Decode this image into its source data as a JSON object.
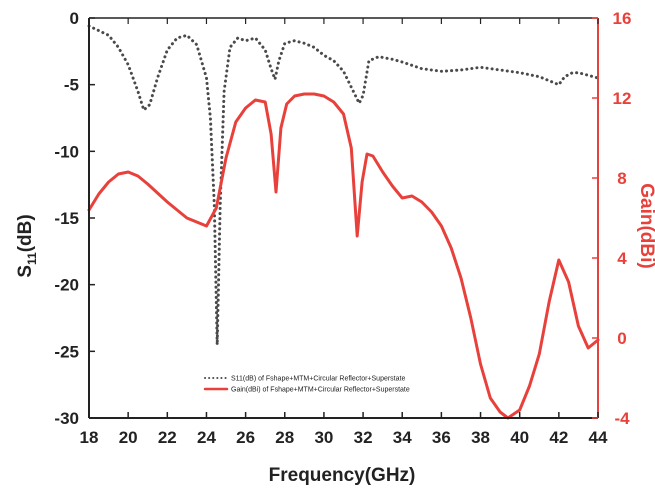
{
  "chart_data": {
    "type": "line",
    "xlabel": "Frequency(GHz)",
    "ylabel_left": {
      "main": "S",
      "sub": "11",
      "rest": "(dB)"
    },
    "ylabel_right": "Gain(dBi)",
    "xlim": [
      18,
      44
    ],
    "ylim_left": [
      -30,
      0
    ],
    "ylim_right": [
      -4,
      16
    ],
    "x_ticks": [
      18,
      20,
      22,
      24,
      26,
      28,
      30,
      32,
      34,
      36,
      38,
      40,
      42,
      44
    ],
    "y_left_ticks": [
      0,
      -5,
      -10,
      -15,
      -20,
      -25,
      -30
    ],
    "y_right_ticks": [
      16,
      12,
      8,
      4,
      0,
      -4
    ],
    "colors": {
      "s11": "#4a4a4a",
      "gain": "#e8413b",
      "right_axis": "#e8413b",
      "left_axis": "#222222"
    },
    "legend_position": "bottom-center",
    "series": [
      {
        "name": "S11(dB) of Fshape+MTM+Circular Reflector+Superstate",
        "axis": "left",
        "style": "dotted",
        "x": [
          18,
          19,
          19.5,
          20,
          20.5,
          20.8,
          21.1,
          21.5,
          22,
          22.5,
          23,
          23.5,
          24,
          24.2,
          24.4,
          24.55,
          24.7,
          24.9,
          25.2,
          25.6,
          26,
          26.5,
          27,
          27.3,
          27.5,
          27.7,
          28,
          28.5,
          29,
          29.5,
          30,
          30.5,
          31,
          31.5,
          31.8,
          32,
          32.3,
          32.8,
          33.5,
          34,
          35,
          36,
          37,
          38,
          39,
          40,
          41,
          41.5,
          42,
          42.3,
          42.7,
          43,
          43.5,
          44
        ],
        "values": [
          -0.6,
          -1.3,
          -2.2,
          -3.5,
          -5.5,
          -6.9,
          -6.5,
          -4.5,
          -2.4,
          -1.5,
          -1.3,
          -2,
          -4.5,
          -7.5,
          -14,
          -24.5,
          -14,
          -5.5,
          -2.2,
          -1.5,
          -1.7,
          -1.5,
          -2.4,
          -3.8,
          -4.6,
          -3.2,
          -1.9,
          -1.7,
          -1.9,
          -2.2,
          -2.8,
          -3.2,
          -4,
          -5.5,
          -6.4,
          -5.8,
          -3.2,
          -2.9,
          -3.1,
          -3.3,
          -3.8,
          -4,
          -3.9,
          -3.7,
          -3.9,
          -4.1,
          -4.4,
          -4.7,
          -5,
          -4.4,
          -4.1,
          -4.1,
          -4.3,
          -4.5
        ]
      },
      {
        "name": "Gain(dBi) of Fshape+MTM+Circular Reflector+Superstate",
        "axis": "right",
        "style": "solid",
        "x": [
          18,
          18.5,
          19,
          19.5,
          20,
          20.5,
          21,
          22,
          23,
          24,
          24.5,
          25,
          25.5,
          26,
          26.5,
          27,
          27.3,
          27.55,
          27.8,
          28.1,
          28.5,
          29,
          29.5,
          30,
          30.5,
          31,
          31.4,
          31.7,
          31.95,
          32.2,
          32.5,
          33,
          33.5,
          34,
          34.5,
          35,
          35.5,
          36,
          36.5,
          37,
          37.5,
          38,
          38.5,
          39,
          39.4,
          40,
          40.5,
          41,
          41.5,
          42,
          42.5,
          43,
          43.5,
          44
        ],
        "values": [
          6.4,
          7.2,
          7.8,
          8.2,
          8.3,
          8.1,
          7.7,
          6.8,
          6,
          5.6,
          6.5,
          9,
          10.8,
          11.5,
          11.9,
          11.8,
          10.2,
          7.3,
          10.5,
          11.7,
          12.1,
          12.2,
          12.2,
          12.1,
          11.8,
          11.2,
          9.5,
          5.1,
          7.8,
          9.2,
          9.1,
          8.3,
          7.6,
          7,
          7.1,
          6.8,
          6.3,
          5.6,
          4.5,
          3,
          1,
          -1.3,
          -3,
          -3.7,
          -4,
          -3.6,
          -2.4,
          -0.8,
          1.8,
          3.9,
          2.8,
          0.6,
          -0.5,
          -0.1
        ]
      }
    ]
  }
}
